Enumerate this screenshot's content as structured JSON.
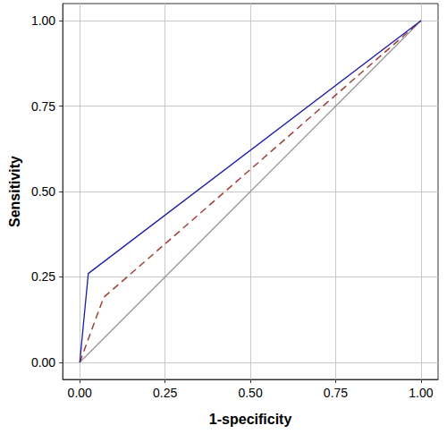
{
  "chart_data": {
    "type": "line",
    "x_label": "1-specificity",
    "y_label": "Sensitivity",
    "xlim": [
      -0.05,
      1.05
    ],
    "ylim": [
      -0.05,
      1.05
    ],
    "xticks": [
      {
        "value": 0,
        "label": "0.00"
      },
      {
        "value": 0.25,
        "label": "0.25"
      },
      {
        "value": 0.5,
        "label": "0.50"
      },
      {
        "value": 0.75,
        "label": "0.75"
      },
      {
        "value": 1,
        "label": "1.00"
      }
    ],
    "yticks": [
      {
        "value": 0,
        "label": "0.00"
      },
      {
        "value": 0.25,
        "label": "0.25"
      },
      {
        "value": 0.5,
        "label": "0.50"
      },
      {
        "value": 0.75,
        "label": "0.75"
      },
      {
        "value": 1,
        "label": "1.00"
      }
    ],
    "grid": true,
    "series": [
      {
        "color": "#8c8c8c",
        "line_style": "solid",
        "marker": "none",
        "x": [
          0,
          1
        ],
        "values": [
          0,
          1
        ]
      },
      {
        "color": "#a0403a",
        "line_style": "dashed",
        "marker": "none",
        "x": [
          0,
          0.07,
          1
        ],
        "values": [
          0,
          0.19,
          1
        ]
      },
      {
        "color": "#1c1ca8",
        "line_style": "solid",
        "marker": "none",
        "x": [
          0,
          0.025,
          1
        ],
        "values": [
          0,
          0.26,
          1
        ]
      }
    ]
  }
}
